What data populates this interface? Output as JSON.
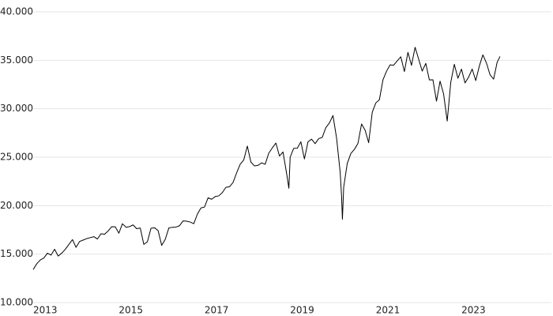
{
  "chart_data": {
    "type": "line",
    "color": "#000000",
    "grid": true,
    "xlim": [
      2013,
      2025.1
    ],
    "xticks": [
      2013,
      2015,
      2017,
      2019,
      2021,
      2023
    ],
    "ylim": [
      10000,
      40000
    ],
    "yticks": [
      {
        "value": 10000,
        "label": "10.000"
      },
      {
        "value": 15000,
        "label": "15.000"
      },
      {
        "value": 20000,
        "label": "20.000"
      },
      {
        "value": 25000,
        "label": "25.000"
      },
      {
        "value": 30000,
        "label": "30.000"
      },
      {
        "value": 35000,
        "label": "35.000"
      },
      {
        "value": 40000,
        "label": "40.000"
      }
    ],
    "x": [
      2013.0,
      2013.083,
      2013.167,
      2013.25,
      2013.333,
      2013.417,
      2013.5,
      2013.583,
      2013.667,
      2013.75,
      2013.833,
      2013.917,
      2014.0,
      2014.083,
      2014.167,
      2014.25,
      2014.333,
      2014.417,
      2014.5,
      2014.583,
      2014.667,
      2014.75,
      2014.833,
      2014.917,
      2015.0,
      2015.083,
      2015.167,
      2015.25,
      2015.333,
      2015.417,
      2015.5,
      2015.583,
      2015.667,
      2015.75,
      2015.833,
      2015.917,
      2016.0,
      2016.083,
      2016.167,
      2016.25,
      2016.333,
      2016.417,
      2016.5,
      2016.583,
      2016.667,
      2016.75,
      2016.833,
      2016.917,
      2017.0,
      2017.083,
      2017.167,
      2017.25,
      2017.333,
      2017.417,
      2017.5,
      2017.583,
      2017.667,
      2017.75,
      2017.833,
      2017.917,
      2018.0,
      2018.083,
      2018.167,
      2018.25,
      2018.333,
      2018.417,
      2018.5,
      2018.583,
      2018.667,
      2018.75,
      2018.833,
      2018.917,
      2018.97,
      2019.0,
      2019.083,
      2019.167,
      2019.25,
      2019.333,
      2019.417,
      2019.5,
      2019.583,
      2019.667,
      2019.75,
      2019.833,
      2019.917,
      2020.0,
      2020.083,
      2020.167,
      2020.2,
      2020.22,
      2020.25,
      2020.333,
      2020.417,
      2020.5,
      2020.583,
      2020.667,
      2020.75,
      2020.833,
      2020.917,
      2021.0,
      2021.083,
      2021.167,
      2021.25,
      2021.333,
      2021.417,
      2021.5,
      2021.583,
      2021.667,
      2021.75,
      2021.833,
      2021.917,
      2022.0,
      2022.083,
      2022.167,
      2022.25,
      2022.333,
      2022.417,
      2022.5,
      2022.583,
      2022.667,
      2022.75,
      2022.833,
      2022.917,
      2023.0,
      2023.083,
      2023.167,
      2023.25,
      2023.333,
      2023.417,
      2023.5,
      2023.583,
      2023.667,
      2023.75,
      2023.833,
      2023.9
    ],
    "values": [
      13400,
      14000,
      14400,
      14600,
      15100,
      14900,
      15500,
      14800,
      15100,
      15500,
      16000,
      16500,
      15700,
      16300,
      16450,
      16600,
      16700,
      16800,
      16560,
      17100,
      17050,
      17390,
      17830,
      17820,
      17160,
      18130,
      17780,
      17840,
      18010,
      17620,
      17690,
      16000,
      16280,
      17660,
      17720,
      17430,
      15900,
      16520,
      17690,
      17770,
      17790,
      17930,
      18430,
      18400,
      18310,
      18140,
      19120,
      19760,
      19860,
      20810,
      20660,
      20940,
      21010,
      21350,
      21890,
      21950,
      22400,
      23380,
      24270,
      24720,
      26150,
      24500,
      24100,
      24160,
      24420,
      24270,
      25420,
      25960,
      26460,
      25120,
      25540,
      23330,
      21800,
      25000,
      25920,
      25930,
      26590,
      24820,
      26600,
      26860,
      26400,
      26920,
      27050,
      28050,
      28540,
      29300,
      27000,
      23500,
      21000,
      18600,
      21920,
      24350,
      25380,
      25810,
      26430,
      28430,
      27780,
      26500,
      29640,
      30600,
      30930,
      32980,
      33870,
      34530,
      34500,
      34940,
      35360,
      33840,
      35820,
      34480,
      36340,
      35130,
      33890,
      34680,
      32980,
      32990,
      30780,
      32850,
      31510,
      28730,
      32730,
      34590,
      33150,
      34090,
      32660,
      33270,
      34100,
      32910,
      34410,
      35560,
      34720,
      33510,
      33050,
      34800,
      35400
    ]
  }
}
